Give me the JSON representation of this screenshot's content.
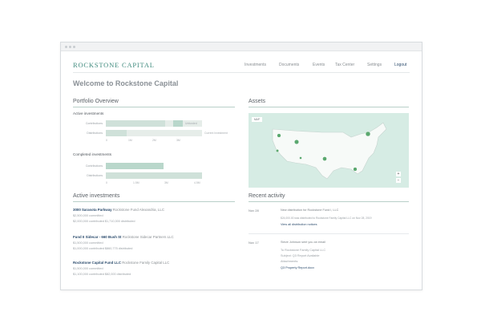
{
  "header": {
    "brand": "ROCKSTONE CAPITAL",
    "nav": [
      "Investments",
      "Documents",
      "Events",
      "Tax Center",
      "Settings",
      "Logout"
    ]
  },
  "welcome": "Welcome to Rockstone Capital",
  "portfolio": {
    "title": "Portfolio Overview",
    "active": {
      "heading": "Active investments",
      "rows": [
        {
          "label": "Contributions",
          "note": "Unfunded",
          "fill": 0.62
        },
        {
          "label": "Distributions",
          "note": "Current Investment",
          "fill": 0.22
        }
      ],
      "ticks": [
        "0",
        "1M",
        "2M",
        "3M"
      ]
    },
    "completed": {
      "heading": "Completed investments",
      "rows": [
        {
          "label": "Contributions",
          "fill": 0.6
        },
        {
          "label": "Distributions",
          "fill": 1.0
        }
      ],
      "ticks": [
        "0",
        "1.5M",
        "3M",
        "4.5M"
      ]
    }
  },
  "assets": {
    "title": "Assets",
    "map_label": "MAP",
    "zoom_in": "+",
    "zoom_out": "−"
  },
  "active_investments": {
    "title": "Active investments",
    "items": [
      {
        "name": "3000 Sarasota Parkway",
        "rest": " Rockstone Fund Alexandria, LLC",
        "line1": "$2,500,000 committed",
        "line2": "$2,000,000 contributed    $1,710,000 distributed"
      },
      {
        "name": "Fund II Sidecar - 660 Bush St",
        "rest": " Rockstone Sidecar Partners LLC",
        "line1": "$1,500,000 committed",
        "line2": "$1,000,000 contributed    $860,775 distributed"
      },
      {
        "name": "Rockstone Capital Fund LLC",
        "rest": " Rockstone Family Capital LLC",
        "line1": "$1,500,000 committed",
        "line2": "$1,100,000 contributed    $82,000 distributed"
      }
    ]
  },
  "recent_activity": {
    "title": "Recent activity",
    "items": [
      {
        "date": "Nov 28",
        "headline": "New distribution for Rockstone Fund I, LLC",
        "detail": "$24,000.00 was distributed to Rockstone Family Capital LLC on Nov 28, 2019",
        "link": "View all distribution notices"
      },
      {
        "date": "Nov 17",
        "headline": "Steve Johnson sent you an email",
        "detail1": "To Rockstone Family Capital LLC",
        "detail2": "Subject: Q3 Report Available",
        "detail3": "Attachments:",
        "link": "Q3 Property Report.docx"
      }
    ]
  },
  "colors": {
    "accent": "#3e8a7d",
    "link": "#2d4d6e",
    "map": "#d6ece4",
    "pin": "#5ba86f"
  }
}
